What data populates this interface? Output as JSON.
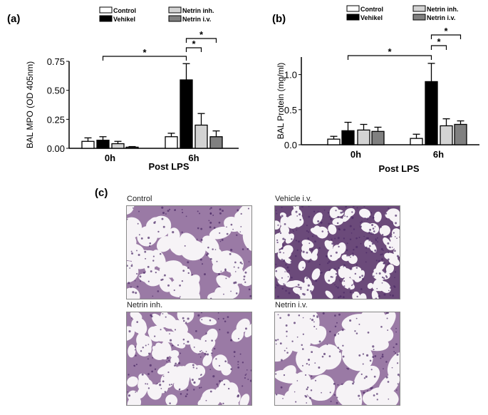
{
  "panels": {
    "a": "(a)",
    "b": "(b)",
    "c": "(c)"
  },
  "chart_data": [
    {
      "type": "bar",
      "ylabel": "BAL MPO (OD 405nm)",
      "xlabel": "Post LPS",
      "categories": [
        "0h",
        "6h"
      ],
      "ylim": [
        0,
        0.75
      ],
      "yticks": [
        "0.00",
        "0.25",
        "0.50",
        "0.75"
      ],
      "legend": [
        "Control",
        "Vehikel",
        "Netrin inh.",
        "Netrin i.v."
      ],
      "legend_placement": "top",
      "series": [
        {
          "name": "Control",
          "color": "#ffffff",
          "values": [
            0.06,
            0.1
          ],
          "errors": [
            0.03,
            0.03
          ]
        },
        {
          "name": "Vehikel",
          "color": "#000000",
          "values": [
            0.07,
            0.59
          ],
          "errors": [
            0.03,
            0.14
          ]
        },
        {
          "name": "Netrin inh.",
          "color": "#d3d3d3",
          "values": [
            0.04,
            0.2
          ],
          "errors": [
            0.02,
            0.1
          ]
        },
        {
          "name": "Netrin i.v.",
          "color": "#808080",
          "values": [
            0.01,
            0.1
          ],
          "errors": [
            0.005,
            0.05
          ]
        }
      ],
      "significance": [
        {
          "from": [
            "0h",
            "Vehikel"
          ],
          "to": [
            "6h",
            "Vehikel"
          ],
          "label": "*"
        },
        {
          "from": [
            "6h",
            "Vehikel"
          ],
          "to": [
            "6h",
            "Netrin inh."
          ],
          "label": "*"
        },
        {
          "from": [
            "6h",
            "Vehikel"
          ],
          "to": [
            "6h",
            "Netrin i.v."
          ],
          "label": "*"
        }
      ]
    },
    {
      "type": "bar",
      "ylabel": "BAL Protein (mg/ml)",
      "xlabel": "Post LPS",
      "categories": [
        "0h",
        "6h"
      ],
      "ylim": [
        0,
        1.25
      ],
      "yticks": [
        "0.0",
        "0.5",
        "1.0"
      ],
      "legend": [
        "Control",
        "Vehikel",
        "Netrin inh.",
        "Netrin i.v."
      ],
      "legend_placement": "top",
      "series": [
        {
          "name": "Control",
          "color": "#ffffff",
          "values": [
            0.08,
            0.09
          ],
          "errors": [
            0.04,
            0.06
          ]
        },
        {
          "name": "Vehikel",
          "color": "#000000",
          "values": [
            0.2,
            0.9
          ],
          "errors": [
            0.12,
            0.26
          ]
        },
        {
          "name": "Netrin inh.",
          "color": "#d3d3d3",
          "values": [
            0.21,
            0.27
          ],
          "errors": [
            0.08,
            0.1
          ]
        },
        {
          "name": "Netrin i.v.",
          "color": "#808080",
          "values": [
            0.19,
            0.29
          ],
          "errors": [
            0.06,
            0.05
          ]
        }
      ],
      "significance": [
        {
          "from": [
            "0h",
            "Vehikel"
          ],
          "to": [
            "6h",
            "Vehikel"
          ],
          "label": "*"
        },
        {
          "from": [
            "6h",
            "Vehikel"
          ],
          "to": [
            "6h",
            "Netrin inh."
          ],
          "label": "*"
        },
        {
          "from": [
            "6h",
            "Vehikel"
          ],
          "to": [
            "6h",
            "Netrin i.v."
          ],
          "label": "*"
        }
      ]
    }
  ],
  "histology": [
    {
      "caption": "Control"
    },
    {
      "caption": "Vehicle i.v."
    },
    {
      "caption": "Netrin inh."
    },
    {
      "caption": "Netrin i.v."
    }
  ]
}
